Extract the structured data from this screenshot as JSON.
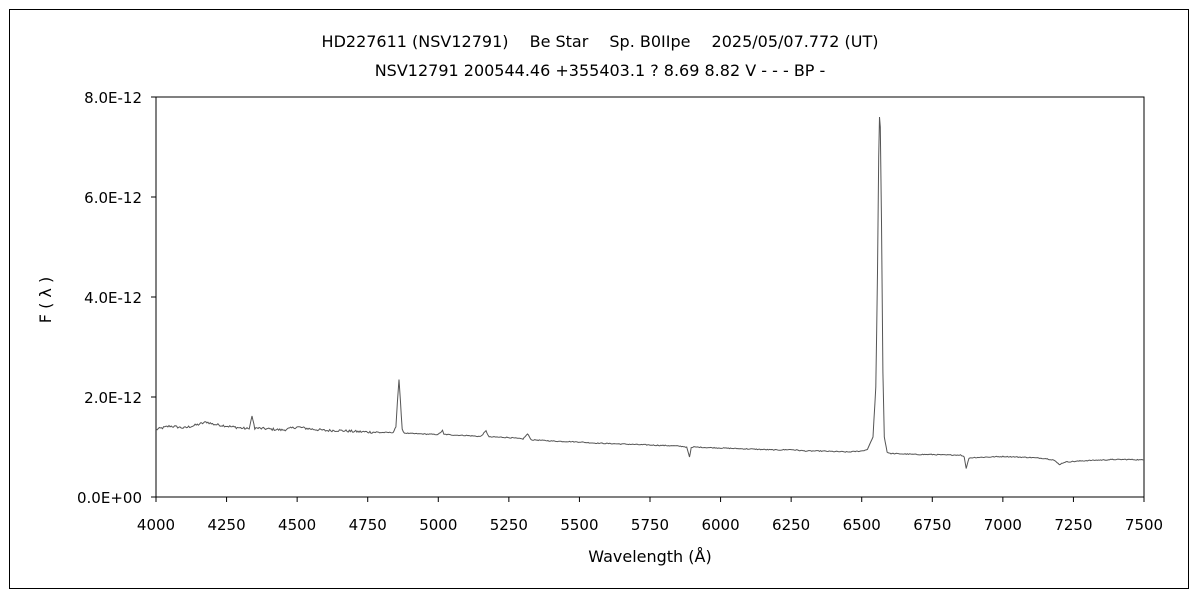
{
  "chart_data": {
    "type": "line",
    "title": "HD227611 (NSV12791)　 Be Star　 Sp. B0IIpe　 2025/05/07.772 (UT)",
    "subtitle": "NSV12791 200544.46 +355403.1 ? 8.69 8.82 V - - - BP -",
    "xlabel": "Wavelength (Å)",
    "ylabel": "F ( λ )",
    "xlim": [
      4000,
      7500
    ],
    "ylim": [
      0,
      8e-12
    ],
    "xticks": [
      4000,
      4250,
      4500,
      4750,
      5000,
      5250,
      5500,
      5750,
      6000,
      6250,
      6500,
      6750,
      7000,
      7250,
      7500
    ],
    "xtick_labels": [
      "4000",
      "4250",
      "4500",
      "4750",
      "5000",
      "5250",
      "5500",
      "5750",
      "6000",
      "6250",
      "6500",
      "6750",
      "7000",
      "7250",
      "7500"
    ],
    "yticks": [
      0,
      2e-12,
      4e-12,
      6e-12,
      8e-12
    ],
    "ytick_labels": [
      "0.0E+00",
      "2.0E-12",
      "4.0E-12",
      "6.0E-12",
      "8.0E-12"
    ],
    "grid": false,
    "line_color": "#555555",
    "series": [
      {
        "x": [
          4000,
          4050,
          4100,
          4150,
          4180,
          4200,
          4250,
          4300,
          4330,
          4340,
          4350,
          4400,
          4450,
          4500,
          4550,
          4600,
          4650,
          4700,
          4750,
          4800,
          4840,
          4850,
          4855,
          4861,
          4866,
          4872,
          4880,
          4900,
          4950,
          5000,
          5015,
          5020,
          5030,
          5050,
          5100,
          5150,
          5169,
          5180,
          5200,
          5250,
          5300,
          5316,
          5330,
          5350,
          5400,
          5450,
          5500,
          5550,
          5600,
          5650,
          5700,
          5750,
          5800,
          5850,
          5880,
          5890,
          5896,
          5905,
          5950,
          6000,
          6050,
          6100,
          6150,
          6200,
          6250,
          6300,
          6350,
          6400,
          6450,
          6500,
          6520,
          6540,
          6550,
          6556,
          6560,
          6563,
          6566,
          6570,
          6575,
          6580,
          6590,
          6600,
          6650,
          6700,
          6750,
          6800,
          6850,
          6863,
          6870,
          6880,
          6900,
          6950,
          7000,
          7050,
          7100,
          7150,
          7180,
          7200,
          7220,
          7250,
          7300,
          7350,
          7400,
          7450,
          7500
        ],
        "y": [
          1.35e-12,
          1.42e-12,
          1.38e-12,
          1.45e-12,
          1.5e-12,
          1.46e-12,
          1.42e-12,
          1.38e-12,
          1.36e-12,
          1.62e-12,
          1.38e-12,
          1.36e-12,
          1.34e-12,
          1.4e-12,
          1.36e-12,
          1.33e-12,
          1.33e-12,
          1.31e-12,
          1.3e-12,
          1.29e-12,
          1.29e-12,
          1.4e-12,
          1.9e-12,
          2.35e-12,
          1.9e-12,
          1.35e-12,
          1.28e-12,
          1.27e-12,
          1.26e-12,
          1.25e-12,
          1.33e-12,
          1.25e-12,
          1.25e-12,
          1.24e-12,
          1.23e-12,
          1.21e-12,
          1.32e-12,
          1.2e-12,
          1.2e-12,
          1.19e-12,
          1.16e-12,
          1.26e-12,
          1.14e-12,
          1.14e-12,
          1.12e-12,
          1.11e-12,
          1.1e-12,
          1.08e-12,
          1.07e-12,
          1.06e-12,
          1.05e-12,
          1.04e-12,
          1.03e-12,
          1.02e-12,
          1e-12,
          8e-13,
          9.8e-13,
          1e-12,
          9.9e-13,
          9.8e-13,
          9.7e-13,
          9.6e-13,
          9.5e-13,
          9.4e-13,
          9.5e-13,
          9.2e-13,
          9.2e-13,
          9.1e-13,
          9e-13,
          9.2e-13,
          9.5e-13,
          1.2e-12,
          2.2e-12,
          4.5e-12,
          6.8e-12,
          7.6e-12,
          7.4e-12,
          5.5e-12,
          2.5e-12,
          1.2e-12,
          9e-13,
          8.7e-13,
          8.6e-13,
          8.5e-13,
          8.5e-13,
          8.4e-13,
          8.4e-13,
          8e-13,
          5.7e-13,
          7.8e-13,
          7.9e-13,
          8e-13,
          8.1e-13,
          8e-13,
          7.9e-13,
          7.7e-13,
          7.4e-13,
          6.5e-13,
          7e-13,
          7.1e-13,
          7.3e-13,
          7.4e-13,
          7.5e-13,
          7.5e-13,
          7.4e-13
        ]
      }
    ]
  }
}
